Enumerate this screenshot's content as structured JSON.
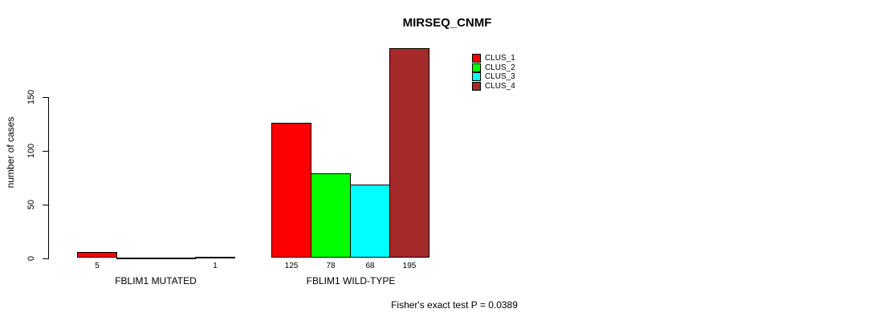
{
  "chart_data": {
    "type": "bar",
    "title": "MIRSEQ_CNMF",
    "ylabel": "number of cases",
    "xlabel": "",
    "ylim": [
      0,
      150
    ],
    "yticks": [
      "0",
      "50",
      "100",
      "150"
    ],
    "grid": false,
    "legend_position": "top-right",
    "series": [
      {
        "name": "CLUS_1",
        "color": "#FF0000"
      },
      {
        "name": "CLUS_2",
        "color": "#00FF00"
      },
      {
        "name": "CLUS_3",
        "color": "#00FFFF"
      },
      {
        "name": "CLUS_4",
        "color": "#A52A2A"
      }
    ],
    "groups": [
      {
        "label": "FBLIM1 MUTATED",
        "values": [
          5,
          0,
          0,
          1
        ],
        "bar_labels": [
          "5",
          "",
          "",
          "1"
        ]
      },
      {
        "label": "FBLIM1 WILD-TYPE",
        "values": [
          125,
          78,
          68,
          195
        ],
        "bar_labels": [
          "125",
          "78",
          "68",
          "195"
        ]
      }
    ],
    "annotation": "Fisher's exact test P = 0.0389"
  },
  "colors": {
    "background": "#FFFFFF",
    "axis": "#000000",
    "text": "#000000"
  }
}
